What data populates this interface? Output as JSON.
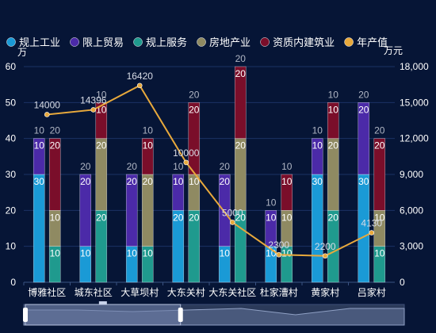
{
  "colors": {
    "background": "#061536",
    "axis_text": "#ffffff",
    "grid": "#1b3264",
    "label_gray": "#b0b6c4",
    "slider_bg": "#2b3a5a",
    "slider_window": "#6e7ea8"
  },
  "chart_data": {
    "type": "bar",
    "categories": [
      "博雅社区",
      "城东社区",
      "大草坝村",
      "大东关村",
      "大东关社区",
      "杜家漕村",
      "黄家村",
      "吕家村"
    ],
    "y_left": {
      "unit": "万",
      "ylim": [
        0,
        60
      ],
      "ticks": [
        "0",
        "10",
        "20",
        "30",
        "40",
        "50",
        "60"
      ]
    },
    "y_right": {
      "unit": "万元",
      "ylim": [
        0,
        18000
      ],
      "ticks": [
        "0",
        "3,000",
        "6,000",
        "9,000",
        "12,000",
        "15,000",
        "18,000"
      ]
    },
    "grid": true,
    "legend_position": "top-left",
    "series": [
      {
        "name": "规上工业",
        "stack": "A",
        "color": "#1a9ad6",
        "values": [
          30,
          10,
          10,
          20,
          10,
          10,
          30,
          30
        ],
        "labels": [
          "30",
          "10",
          "10",
          "20",
          "10",
          "10",
          "30",
          "30"
        ]
      },
      {
        "name": "限上贸易",
        "stack": "A",
        "color": "#4b2aa8",
        "values": [
          10,
          20,
          20,
          10,
          20,
          10,
          10,
          20
        ],
        "labels": [
          "10",
          "20",
          "20",
          "10",
          "20",
          "10",
          "10",
          "20"
        ]
      },
      {
        "name": "规上服务",
        "stack": "B",
        "color": "#1f9a8e",
        "values": [
          10,
          20,
          10,
          20,
          20,
          10,
          20,
          10
        ],
        "labels": [
          "10",
          "20",
          "10",
          "20",
          "20",
          "10",
          "20",
          "10"
        ]
      },
      {
        "name": "房地产业",
        "stack": "B",
        "color": "#8f8a62",
        "values": [
          10,
          20,
          20,
          10,
          20,
          10,
          20,
          10
        ],
        "labels": [
          "10",
          "20",
          "20",
          "10",
          "20",
          "10",
          "20",
          "10"
        ]
      },
      {
        "name": "资质内建筑业",
        "stack": "B",
        "color": "#7a0e2a",
        "values": [
          20,
          10,
          10,
          20,
          20,
          10,
          10,
          20
        ],
        "labels": [
          "20",
          "10",
          "10",
          "20",
          "20",
          "10",
          "10",
          "20"
        ]
      },
      {
        "name": "年产值",
        "type": "line",
        "axis": "right",
        "color": "#e8a93c",
        "values": [
          14000,
          14396,
          16420,
          10000,
          5000,
          2300,
          2200,
          4130
        ],
        "labels": [
          "14000",
          "14396",
          "16420",
          "10000",
          "5000",
          "2300",
          "2200",
          "4130"
        ]
      }
    ],
    "slider_range": [
      "博雅社区",
      "大东关村"
    ]
  }
}
